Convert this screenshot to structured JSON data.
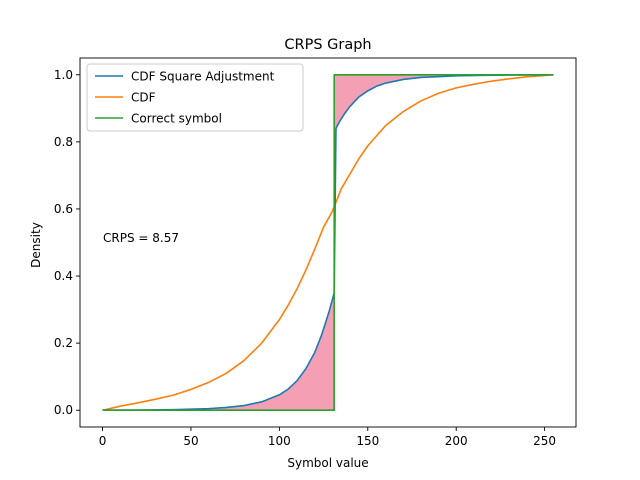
{
  "chart_data": {
    "type": "line",
    "title": "CRPS Graph",
    "xlabel": "Symbol value",
    "ylabel": "Density",
    "xlim": [
      -12.75,
      267.75
    ],
    "ylim": [
      -0.05,
      1.05
    ],
    "xticks": [
      0,
      50,
      100,
      150,
      200,
      250
    ],
    "yticks": [
      0.0,
      0.2,
      0.4,
      0.6,
      0.8,
      1.0
    ],
    "xtick_labels": [
      "0",
      "50",
      "100",
      "150",
      "200",
      "250"
    ],
    "ytick_labels": [
      "0.0",
      "0.2",
      "0.4",
      "0.6",
      "0.8",
      "1.0"
    ],
    "legend_position": "upper-left",
    "grid": false,
    "annotation": "CRPS = 8.57",
    "fill_color": "#f4a0b4",
    "step_x": 131,
    "series": [
      {
        "name": "CDF Square Adjustment",
        "color": "#1f77b4",
        "x": [
          0,
          20,
          40,
          60,
          70,
          80,
          90,
          100,
          105,
          110,
          115,
          120,
          124,
          128,
          131,
          132,
          134,
          137,
          140,
          145,
          150,
          155,
          160,
          170,
          180,
          200,
          220,
          240,
          255
        ],
        "y": [
          0.0,
          0.0005,
          0.0017,
          0.0048,
          0.0083,
          0.014,
          0.025,
          0.046,
          0.063,
          0.088,
          0.124,
          0.172,
          0.226,
          0.292,
          0.35,
          0.84,
          0.86,
          0.885,
          0.906,
          0.934,
          0.952,
          0.966,
          0.975,
          0.986,
          0.992,
          0.997,
          0.9987,
          0.9995,
          1.0
        ]
      },
      {
        "name": "CDF",
        "color": "#ff7f0e",
        "x": [
          0,
          10,
          20,
          30,
          40,
          50,
          60,
          70,
          80,
          90,
          100,
          105,
          110,
          115,
          120,
          125,
          130,
          135,
          140,
          145,
          150,
          160,
          170,
          180,
          190,
          200,
          210,
          220,
          230,
          240,
          255
        ],
        "y": [
          0.0,
          0.012,
          0.022,
          0.033,
          0.045,
          0.062,
          0.083,
          0.11,
          0.148,
          0.2,
          0.27,
          0.313,
          0.362,
          0.418,
          0.48,
          0.546,
          0.593,
          0.66,
          0.705,
          0.75,
          0.788,
          0.848,
          0.89,
          0.922,
          0.945,
          0.961,
          0.972,
          0.981,
          0.988,
          0.994,
          1.0
        ]
      },
      {
        "name": "Correct symbol",
        "color": "#2ca02c",
        "x": [
          0,
          131,
          131,
          255
        ],
        "y": [
          0.0,
          0.0,
          1.0,
          1.0
        ]
      }
    ]
  }
}
